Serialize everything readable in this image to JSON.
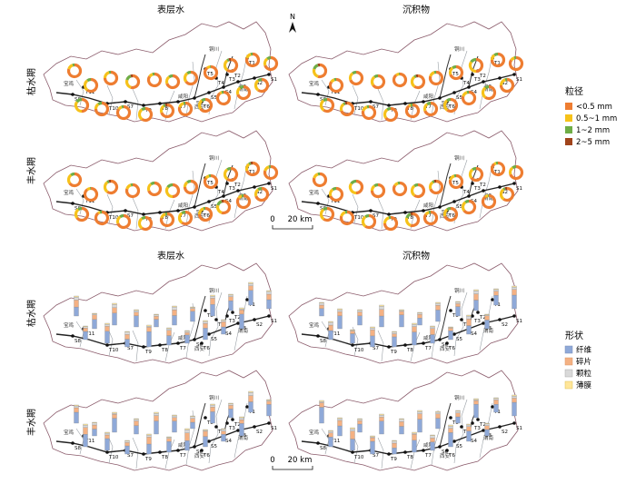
{
  "columns": {
    "left": "表层水",
    "right": "沉积物"
  },
  "rows": {
    "dry": "枯水期",
    "wet": "丰水期"
  },
  "north": "N",
  "scale": {
    "zero": "0",
    "value": "20 km"
  },
  "colors": {
    "fine": "#ee7d31",
    "medium": "#f6c21a",
    "coarse": "#6fad46",
    "large": "#a0441b",
    "fiber": "#8fa9d8",
    "fragment": "#f4b183",
    "granule": "#d9d9d9",
    "film": "#ffe699",
    "river": "#222222",
    "boundary": "#8a5a6a",
    "tributary": "#9aa0a6"
  },
  "legend_size": {
    "title": "粒径",
    "items": [
      {
        "label": "<0.5 mm",
        "color": "#ee7d31"
      },
      {
        "label": "0.5~1 mm",
        "color": "#f6c21a"
      },
      {
        "label": "1~2 mm",
        "color": "#6fad46"
      },
      {
        "label": "2~5 mm",
        "color": "#a0441b"
      }
    ]
  },
  "legend_shape": {
    "title": "形状",
    "items": [
      {
        "label": "纤维",
        "color": "#8fa9d8"
      },
      {
        "label": "碎片",
        "color": "#f4b183"
      },
      {
        "label": "颗粒",
        "color": "#d9d9d9"
      },
      {
        "label": "薄膜",
        "color": "#ffe699"
      }
    ]
  },
  "cities": [
    "宝鸡",
    "咸阳",
    "西安",
    "铜川",
    "渭南"
  ],
  "sites": {
    "s": [
      "S1",
      "S2",
      "S3",
      "S4",
      "S5",
      "S6",
      "S7",
      "S8"
    ],
    "t": [
      "T1",
      "T2",
      "T3",
      "T4",
      "T5",
      "T6",
      "T7",
      "T8",
      "T9",
      "T10",
      "T11"
    ]
  }
}
